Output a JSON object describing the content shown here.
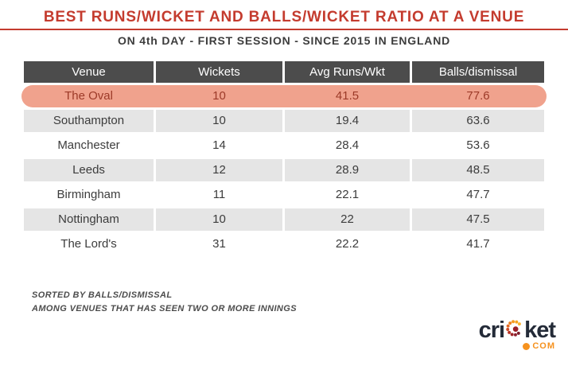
{
  "header": {
    "title": "BEST RUNS/WICKET AND BALLS/WICKET RATIO AT A VENUE",
    "subtitle": "ON 4th DAY - FIRST SESSION - SINCE 2015 IN ENGLAND"
  },
  "table": {
    "columns": [
      "Venue",
      "Wickets",
      "Avg Runs/Wkt",
      "Balls/dismissal"
    ],
    "rows": [
      {
        "cells": [
          "The Oval",
          "10",
          "41.5",
          "77.6"
        ],
        "highlighted": true
      },
      {
        "cells": [
          "Southampton",
          "10",
          "19.4",
          "63.6"
        ],
        "highlighted": false
      },
      {
        "cells": [
          "Manchester",
          "14",
          "28.4",
          "53.6"
        ],
        "highlighted": false
      },
      {
        "cells": [
          "Leeds",
          "12",
          "28.9",
          "48.5"
        ],
        "highlighted": false
      },
      {
        "cells": [
          "Birmingham",
          "11",
          "22.1",
          "47.7"
        ],
        "highlighted": false
      },
      {
        "cells": [
          "Nottingham",
          "10",
          "22",
          "47.5"
        ],
        "highlighted": false
      },
      {
        "cells": [
          "The Lord's",
          "31",
          "22.2",
          "41.7"
        ],
        "highlighted": false
      }
    ]
  },
  "notes": [
    "SORTED BY BALLS/DISMISSAL",
    "AMONG VENUES THAT HAS SEEN TWO OR MORE INNINGS"
  ],
  "logo": {
    "brand_pre": "cri",
    "brand_post": "ket",
    "tld": "COM"
  },
  "colors": {
    "accent_red": "#c43b2e",
    "header_bg": "#4c4c4c",
    "row_alt_bg": "#e5e5e5",
    "highlight_bg": "#f0a28d",
    "highlight_text": "#9c3a28",
    "logo_navy": "#242b38",
    "logo_orange": "#f6921e"
  },
  "chart_data": {
    "type": "table",
    "title": "BEST RUNS/WICKET AND BALLS/WICKET RATIO AT A VENUE",
    "subtitle": "ON 4th DAY - FIRST SESSION - SINCE 2015 IN ENGLAND",
    "columns": [
      "Venue",
      "Wickets",
      "Avg Runs/Wkt",
      "Balls/dismissal"
    ],
    "rows": [
      [
        "The Oval",
        10,
        41.5,
        77.6
      ],
      [
        "Southampton",
        10,
        19.4,
        63.6
      ],
      [
        "Manchester",
        14,
        28.4,
        53.6
      ],
      [
        "Leeds",
        12,
        28.9,
        48.5
      ],
      [
        "Birmingham",
        11,
        22.1,
        47.7
      ],
      [
        "Nottingham",
        10,
        22,
        47.5
      ],
      [
        "The Lord's",
        31,
        22.2,
        41.7
      ]
    ],
    "highlighted_row": "The Oval",
    "annotations": [
      "SORTED BY BALLS/DISMISSAL",
      "AMONG VENUES THAT HAS SEEN TWO OR MORE INNINGS"
    ]
  }
}
